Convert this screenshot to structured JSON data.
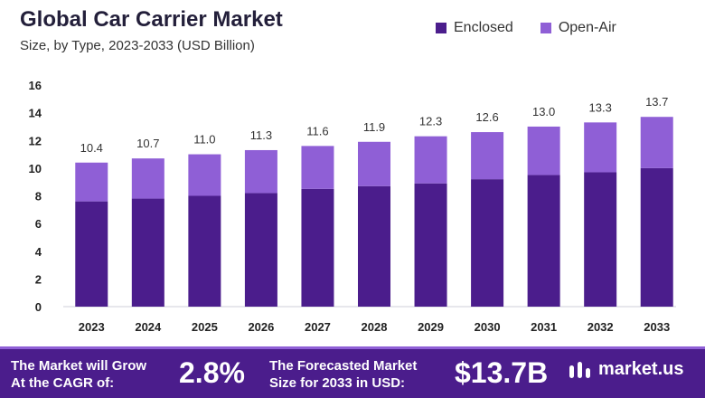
{
  "header": {
    "title": "Global Car Carrier Market",
    "subtitle": "Size, by Type, 2023-2033 (USD Billion)"
  },
  "legend": [
    {
      "label": "Enclosed",
      "color": "#4b1d8c"
    },
    {
      "label": "Open-Air",
      "color": "#8f5fd6"
    }
  ],
  "chart_data": {
    "type": "bar",
    "stacked": true,
    "title": "Global Car Carrier Market",
    "subtitle": "Size, by Type, 2023-2033 (USD Billion)",
    "xlabel": "",
    "ylabel": "",
    "ylim": [
      0,
      16
    ],
    "yticks": [
      0,
      2,
      4,
      6,
      8,
      10,
      12,
      14,
      16
    ],
    "categories": [
      "2023",
      "2024",
      "2025",
      "2026",
      "2027",
      "2028",
      "2029",
      "2030",
      "2031",
      "2032",
      "2033"
    ],
    "series": [
      {
        "name": "Enclosed",
        "color": "#4b1d8c",
        "values": [
          7.6,
          7.8,
          8.0,
          8.2,
          8.5,
          8.7,
          8.9,
          9.2,
          9.5,
          9.7,
          10.0
        ]
      },
      {
        "name": "Open-Air",
        "color": "#8f5fd6",
        "values": [
          2.8,
          2.9,
          3.0,
          3.1,
          3.1,
          3.2,
          3.4,
          3.4,
          3.5,
          3.6,
          3.7
        ]
      }
    ],
    "totals": [
      10.4,
      10.7,
      11.0,
      11.3,
      11.6,
      11.9,
      12.3,
      12.6,
      13.0,
      13.3,
      13.7
    ],
    "total_labels": [
      "10.4",
      "10.7",
      "11.0",
      "11.3",
      "11.6",
      "11.9",
      "12.3",
      "12.6",
      "13.0",
      "13.3",
      "13.7"
    ],
    "grid": false
  },
  "footer": {
    "cagr_text_line1": "The Market will Grow",
    "cagr_text_line2": "At the CAGR of:",
    "cagr_value": "2.8%",
    "forecast_text_line1": "The Forecasted Market",
    "forecast_text_line2": "Size for 2033 in USD:",
    "forecast_value": "$13.7B",
    "brand": "market.us",
    "colors": {
      "background": "#4b1d8c",
      "accent": "#8f5fd6"
    }
  }
}
